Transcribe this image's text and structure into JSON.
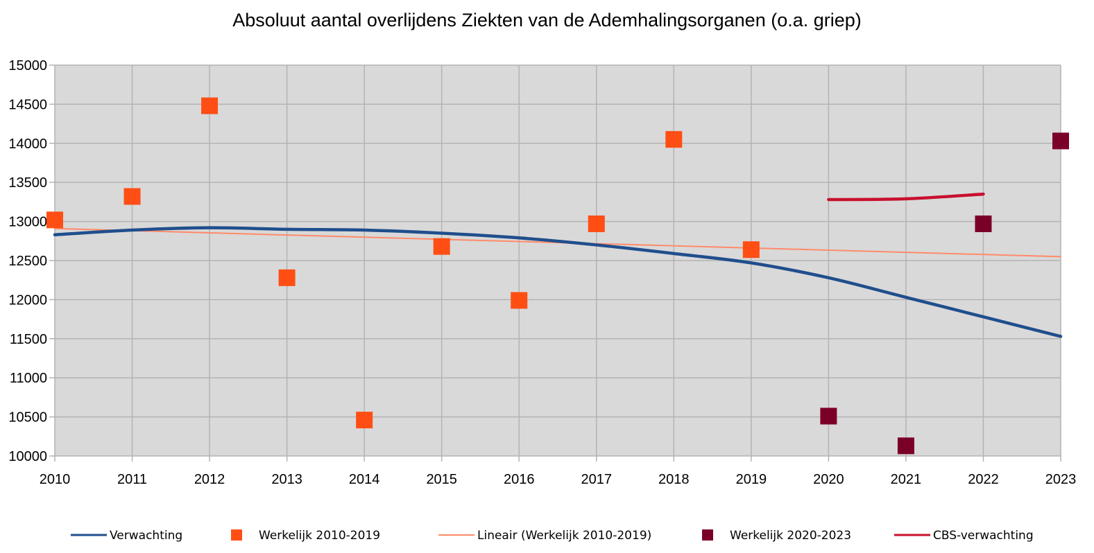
{
  "chart_data": {
    "type": "line",
    "title": "Absoluut aantal overlijdens Ziekten van de Ademhalingsorganen (o.a. griep)",
    "xlabel": "",
    "ylabel": "",
    "x": [
      2010,
      2011,
      2012,
      2013,
      2014,
      2015,
      2016,
      2017,
      2018,
      2019,
      2020,
      2021,
      2022,
      2023
    ],
    "x_tick_labels": [
      "2010",
      "2011",
      "2012",
      "2013",
      "2014",
      "2015",
      "2016",
      "2017",
      "2018",
      "2019",
      "2020",
      "2021",
      "2022",
      "2023"
    ],
    "y_tick_labels": [
      "15000",
      "14500",
      "14000",
      "13500",
      "13000",
      "12500",
      "12000",
      "11500",
      "11000",
      "10500",
      "10000"
    ],
    "xlim": [
      2010,
      2023
    ],
    "ylim": [
      10000,
      15000
    ],
    "grid": true,
    "plot_background": "#d9d9d9",
    "legend_position": "bottom",
    "series": [
      {
        "name": "Verwachting",
        "kind": "line",
        "color": "#1f4e8c",
        "points": [
          [
            2010,
            12830
          ],
          [
            2011,
            12890
          ],
          [
            2012,
            12920
          ],
          [
            2013,
            12900
          ],
          [
            2014,
            12890
          ],
          [
            2015,
            12850
          ],
          [
            2016,
            12790
          ],
          [
            2017,
            12700
          ],
          [
            2018,
            12590
          ],
          [
            2019,
            12470
          ],
          [
            2020,
            12280
          ],
          [
            2021,
            12030
          ],
          [
            2022,
            11780
          ],
          [
            2023,
            11530
          ]
        ]
      },
      {
        "name": "Werkelijk 2010-2019",
        "kind": "marker",
        "color": "#ff4e14",
        "points": [
          [
            2010,
            13020
          ],
          [
            2011,
            13320
          ],
          [
            2012,
            14480
          ],
          [
            2013,
            12280
          ],
          [
            2014,
            10460
          ],
          [
            2015,
            12680
          ],
          [
            2016,
            11990
          ],
          [
            2017,
            12970
          ],
          [
            2018,
            14050
          ],
          [
            2019,
            12640
          ]
        ]
      },
      {
        "name": "Lineair (Werkelijk 2010-2019)",
        "kind": "line",
        "color": "#ff8a6a",
        "points": [
          [
            2010,
            12910
          ],
          [
            2023,
            12550
          ]
        ]
      },
      {
        "name": "Werkelijk 2020-2023",
        "kind": "marker",
        "color": "#7b0028",
        "points": [
          [
            2020,
            10510
          ],
          [
            2021,
            10130
          ],
          [
            2022,
            12970
          ],
          [
            2023,
            14030
          ]
        ]
      },
      {
        "name": "CBS-verwachting",
        "kind": "line",
        "color": "#c8102e",
        "points": [
          [
            2020,
            13280
          ],
          [
            2021,
            13290
          ],
          [
            2022,
            13350
          ]
        ]
      }
    ]
  }
}
